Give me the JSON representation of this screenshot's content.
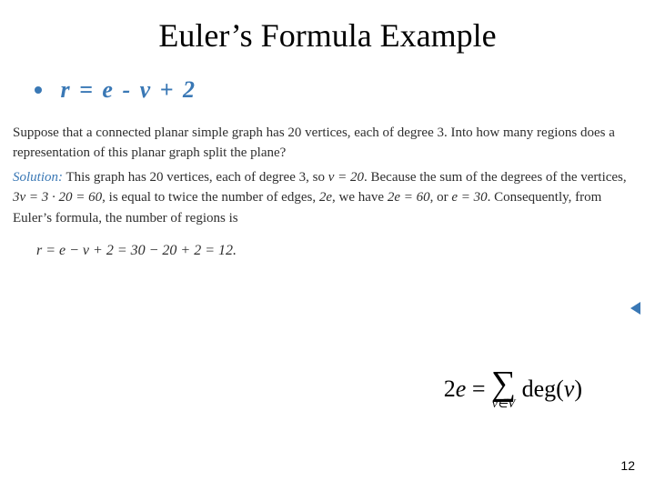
{
  "title": "Euler’s Formula Example",
  "bullet": {
    "formula": "r = e - v + 2"
  },
  "problem": {
    "text": "Suppose that a connected planar simple graph has 20 vertices, each of degree 3. Into how many regions does a representation of this planar graph split the plane?"
  },
  "solution": {
    "label": "Solution:",
    "part1": " This graph has 20 vertices, each of degree 3, so ",
    "v_eq": "v = 20",
    "part2": ". Because the sum of the degrees of the vertices, ",
    "deg_eq": "3v = 3 · 20 = 60",
    "part3": ", is equal to twice the number of edges, ",
    "two_e": "2e",
    "part4": ", we have ",
    "two_e_eq": "2e = 60",
    "part5": ", or ",
    "e_eq": "e = 30",
    "part6": ". Consequently, from Euler’s formula, the number of regions is"
  },
  "result_eq": "r = e − v + 2 = 30 − 20 + 2 = 12.",
  "handshake": {
    "lhs": "2e = ",
    "sub": "v∈V",
    "rhs_func": "deg(",
    "rhs_arg": "v",
    "rhs_close": ")"
  },
  "page_number": "12",
  "colors": {
    "accent": "#3a78b5",
    "text": "#2e2e2e",
    "background": "#ffffff"
  }
}
